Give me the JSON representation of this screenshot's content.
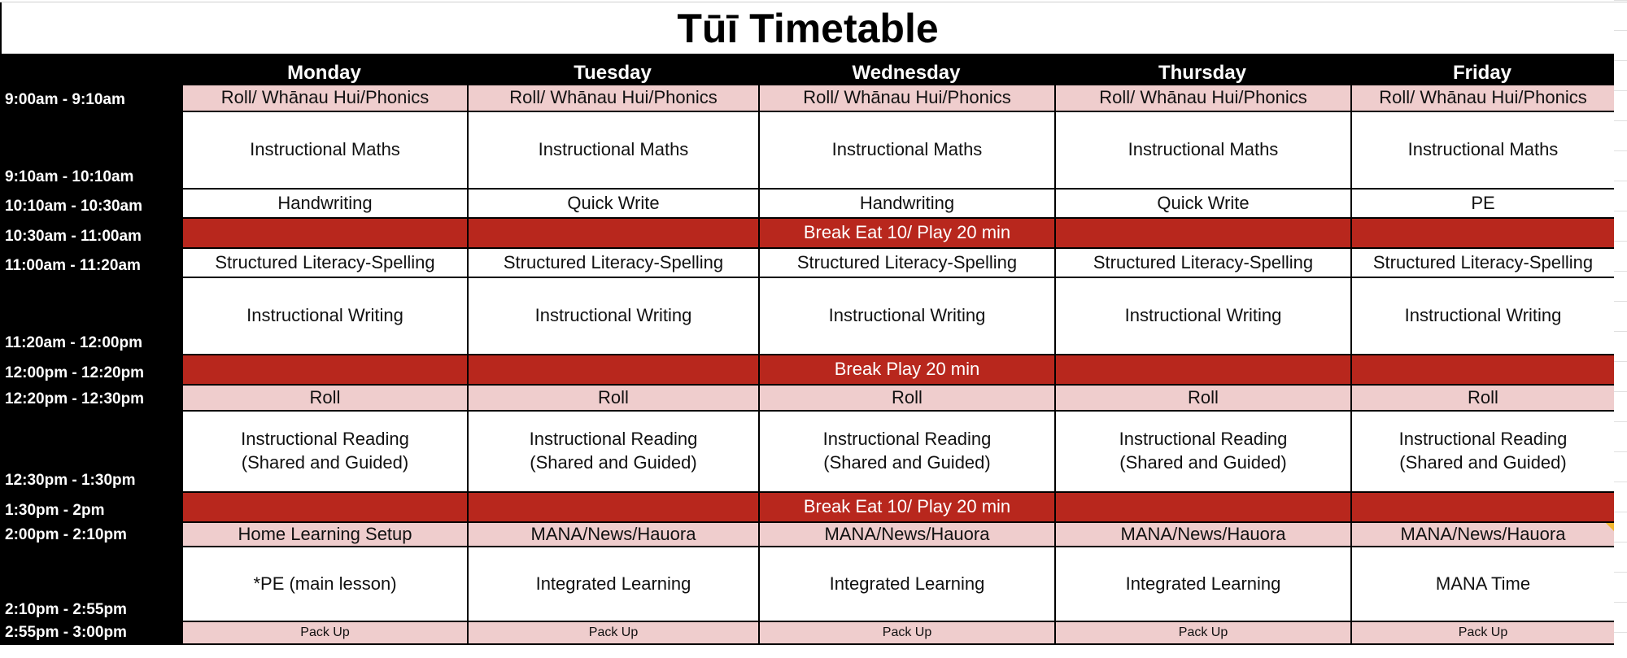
{
  "title": "Tūī Timetable",
  "days": [
    "Monday",
    "Tuesday",
    "Wednesday",
    "Thursday",
    "Friday"
  ],
  "rows": [
    {
      "time": "9:00am - 9:10am",
      "style": "pink",
      "cells": [
        "Roll/ Whānau Hui/Phonics",
        "Roll/ Whānau Hui/Phonics",
        "Roll/ Whānau Hui/Phonics",
        "Roll/ Whānau Hui/Phonics",
        "Roll/ Whānau Hui/Phonics"
      ]
    },
    {
      "time": "9:10am - 10:10am",
      "style": "white",
      "cells": [
        "Instructional Maths",
        "Instructional Maths",
        "Instructional Maths",
        "Instructional Maths",
        "Instructional Maths"
      ]
    },
    {
      "time": "10:10am - 10:30am",
      "style": "white",
      "cells": [
        "Handwriting",
        "Quick Write",
        "Handwriting",
        "Quick Write",
        "PE"
      ]
    },
    {
      "time": "10:30am - 11:00am",
      "style": "red",
      "cells": [
        "",
        "",
        "Break Eat 10/ Play 20 min",
        "",
        ""
      ]
    },
    {
      "time": "11:00am - 11:20am",
      "style": "white",
      "cells": [
        "Structured Literacy-Spelling",
        "Structured Literacy-Spelling",
        "Structured Literacy-Spelling",
        "Structured Literacy-Spelling",
        "Structured Literacy-Spelling"
      ]
    },
    {
      "time": "11:20am - 12:00pm",
      "style": "white",
      "cells": [
        "Instructional Writing",
        "Instructional Writing",
        "Instructional Writing",
        "Instructional Writing",
        "Instructional Writing"
      ]
    },
    {
      "time": "12:00pm - 12:20pm",
      "style": "red",
      "cells": [
        "",
        "",
        "Break Play 20 min",
        "",
        ""
      ]
    },
    {
      "time": "12:20pm - 12:30pm",
      "style": "pink",
      "cells": [
        "Roll",
        "Roll",
        "Roll",
        "Roll",
        "Roll"
      ]
    },
    {
      "time": "12:30pm - 1:30pm",
      "style": "white",
      "cells": [
        "Instructional Reading\n(Shared and Guided)",
        "Instructional Reading\n(Shared and Guided)",
        "Instructional Reading\n(Shared and Guided)",
        "Instructional Reading\n(Shared and Guided)",
        "Instructional Reading\n(Shared and Guided)"
      ]
    },
    {
      "time": "1:30pm - 2pm",
      "style": "red",
      "cells": [
        "",
        "",
        "Break Eat 10/ Play 20 min",
        "",
        ""
      ]
    },
    {
      "time": "2:00pm - 2:10pm",
      "style": "pink",
      "cells": [
        "Home Learning Setup",
        "MANA/News/Hauora",
        "MANA/News/Hauora",
        "MANA/News/Hauora",
        "MANA/News/Hauora"
      ]
    },
    {
      "time": "2:10pm - 2:55pm",
      "style": "white",
      "cells": [
        "*PE (main lesson)",
        "Integrated Learning",
        "Integrated Learning",
        "Integrated Learning",
        "MANA Time"
      ]
    },
    {
      "time": "2:55pm - 3:00pm",
      "style": "pink small",
      "cells": [
        "Pack Up",
        "Pack Up",
        "Pack Up",
        "Pack Up",
        "Pack Up"
      ]
    }
  ],
  "colors": {
    "header": "#000000",
    "break": "#b8271d",
    "pink": "#efcdcd",
    "comment": "#f2b731"
  }
}
